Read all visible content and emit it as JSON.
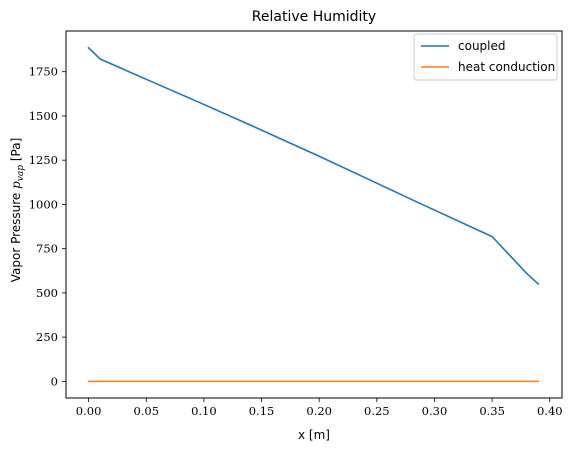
{
  "chart_data": {
    "type": "line",
    "title": "Relative Humidity",
    "xlabel": "x [m]",
    "ylabel": {
      "prefix": "Vapor Pressure ",
      "symbol": "p",
      "subscript": "vap",
      "suffix": " [Pa]"
    },
    "xlim": [
      -0.0196,
      0.4106
    ],
    "ylim": [
      -94,
      1980
    ],
    "x_ticks": [
      0.0,
      0.05,
      0.1,
      0.15,
      0.2,
      0.25,
      0.3,
      0.35,
      0.4
    ],
    "x_tick_labels": [
      "0.00",
      "0.05",
      "0.10",
      "0.15",
      "0.20",
      "0.25",
      "0.30",
      "0.35",
      "0.40"
    ],
    "y_ticks": [
      0,
      250,
      500,
      750,
      1000,
      1250,
      1500,
      1750
    ],
    "y_tick_labels": [
      "0",
      "250",
      "500",
      "750",
      "1000",
      "1250",
      "1500",
      "1750"
    ],
    "grid": false,
    "legend": {
      "position": "top-right"
    },
    "series": [
      {
        "name": "coupled",
        "color": "#1f77b4",
        "x": [
          0.0,
          0.01,
          0.05,
          0.1,
          0.15,
          0.2,
          0.25,
          0.28,
          0.3,
          0.35,
          0.38,
          0.39
        ],
        "y": [
          1885,
          1822,
          1707,
          1565,
          1420,
          1272,
          1120,
          1028,
          968,
          818,
          610,
          550
        ]
      },
      {
        "name": "heat conduction",
        "color": "#ff7f0e",
        "x": [
          0.0,
          0.1,
          0.2,
          0.3,
          0.39
        ],
        "y": [
          0,
          0,
          0,
          0,
          0
        ]
      }
    ]
  }
}
